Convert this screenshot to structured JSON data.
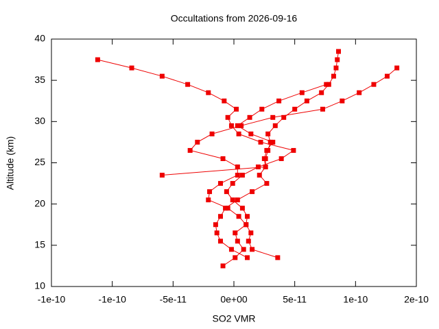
{
  "chart_data": {
    "type": "line",
    "title": "Occultations from 2026-09-16",
    "x_label": "SO2 VMR",
    "y_label": "Altitude (km)",
    "xlim": [
      -1.5e-10,
      1.5e-10
    ],
    "ylim": [
      10,
      40
    ],
    "xticks": [
      {
        "value": -1.5e-10,
        "label": "-1e-10"
      },
      {
        "value": -1e-10,
        "label": "-1e-10"
      },
      {
        "value": -5e-11,
        "label": "-5e-11"
      },
      {
        "value": 0,
        "label": "0e+00"
      },
      {
        "value": 5e-11,
        "label": "5e-11"
      },
      {
        "value": 1e-10,
        "label": "1e-10"
      },
      {
        "value": 1.5e-10,
        "label": "2e-10"
      }
    ],
    "yticks": [
      10,
      15,
      20,
      25,
      30,
      35,
      40
    ],
    "grid": false,
    "series": [
      {
        "color": "#ee0000",
        "x": [
          -1.12e-10,
          -8.4e-11,
          -5.9e-11,
          -3.8e-11,
          -2.1e-11,
          -8e-12,
          2e-12,
          -5e-12,
          -2e-12,
          4e-12,
          2.2e-11,
          4.9e-11,
          3.9e-11,
          2e-11,
          7e-12,
          -1e-12,
          -6e-12,
          -1e-12,
          7e-12,
          1.1e-11,
          1e-11,
          1e-12,
          3e-12,
          8e-12,
          1e-12,
          -9e-12
        ],
        "y": [
          37.5,
          36.5,
          35.5,
          34.5,
          33.5,
          32.5,
          31.5,
          30.5,
          29.5,
          28.5,
          27.5,
          26.5,
          25.5,
          24.5,
          23.5,
          22.5,
          21.5,
          20.5,
          19.5,
          18.5,
          17.5,
          16.5,
          15.5,
          14.5,
          13.5,
          12.5
        ]
      },
      {
        "color": "#ee0000",
        "x": [
          8.6e-11,
          8.5e-11,
          8.4e-11,
          8.2e-11,
          7.8e-11,
          7.2e-11,
          6e-11,
          5e-11,
          4.1e-11,
          3.4e-11,
          2.8e-11,
          3e-11,
          2.8e-11,
          2.6e-11,
          2.6e-11,
          2.1e-11,
          2.7e-11,
          1.5e-11,
          3e-12,
          -7e-12,
          -1.1e-11,
          -1.5e-11,
          -1.4e-11,
          -1.1e-11,
          -2e-12,
          1.1e-11
        ],
        "y": [
          38.5,
          37.5,
          36.5,
          35.5,
          34.5,
          33.5,
          32.5,
          31.5,
          30.5,
          29.5,
          28.5,
          27.5,
          26.5,
          25.5,
          24.5,
          23.5,
          22.5,
          21.5,
          20.5,
          19.5,
          18.5,
          17.5,
          16.5,
          15.5,
          14.5,
          13.5
        ]
      },
      {
        "color": "#ee0000",
        "x": [
          1.34e-10,
          1.26e-10,
          1.15e-10,
          1.03e-10,
          8.9e-11,
          7.3e-11,
          3.2e-11,
          6e-12,
          -1.8e-11,
          -3e-11,
          -3.6e-11,
          -9e-12,
          3e-12,
          3e-12,
          -1.1e-11,
          -2e-11,
          -2.1e-11,
          -5e-12,
          4e-12,
          1e-11,
          1.4e-11,
          1.2e-11,
          1.5e-11,
          3.6e-11
        ],
        "y": [
          36.5,
          35.5,
          34.5,
          33.5,
          32.5,
          31.5,
          30.5,
          29.5,
          28.5,
          27.5,
          26.5,
          25.5,
          24.5,
          23.5,
          22.5,
          21.5,
          20.5,
          19.5,
          18.5,
          17.5,
          16.5,
          15.5,
          14.5,
          13.5
        ]
      },
      {
        "color": "#ee0000",
        "x": [
          7.6e-11,
          5.6e-11,
          3.7e-11,
          2.3e-11,
          1.3e-11,
          3e-12,
          1.4e-11,
          3.2e-11,
          2.7e-11,
          2.5e-11,
          2.6e-11,
          -5.9e-11
        ],
        "y": [
          34.5,
          33.5,
          32.5,
          31.5,
          30.5,
          29.5,
          28.5,
          27.5,
          26.5,
          25.5,
          24.5,
          23.5
        ]
      }
    ]
  }
}
